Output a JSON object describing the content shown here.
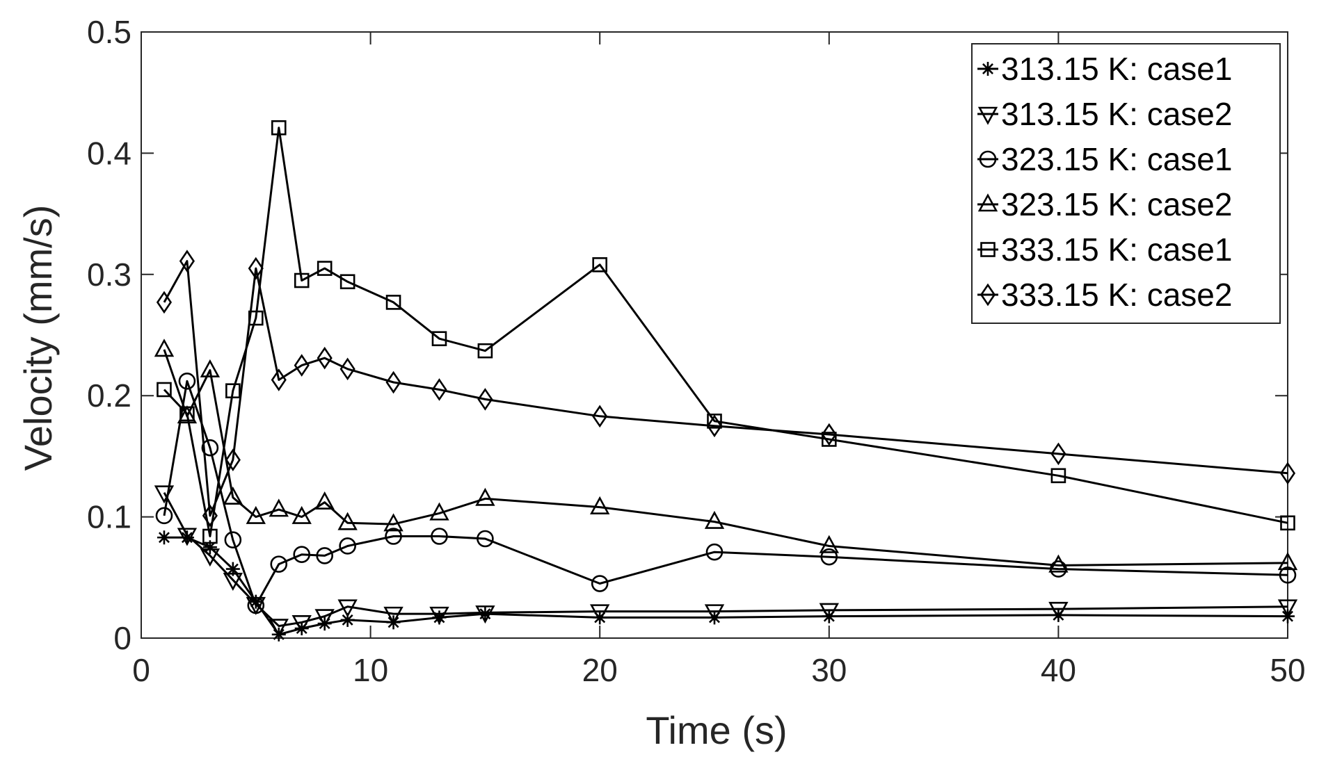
{
  "chart_data": {
    "type": "line",
    "title": "",
    "xlabel": "Time (s)",
    "ylabel": "Velocity (mm/s)",
    "xlim": [
      0,
      50
    ],
    "ylim": [
      0,
      0.5
    ],
    "xticks": [
      0,
      10,
      20,
      30,
      40,
      50
    ],
    "yticks": [
      0,
      0.1,
      0.2,
      0.3,
      0.4,
      0.5
    ],
    "xtick_labels": [
      "0",
      "10",
      "20",
      "30",
      "40",
      "50"
    ],
    "ytick_labels": [
      "0",
      "0.1",
      "0.2",
      "0.3",
      "0.4",
      "0.5"
    ],
    "grid": false,
    "legend_position": "top-right",
    "series": [
      {
        "name": "313.15 K: case1",
        "marker": "asterisk",
        "x": [
          1,
          2,
          3,
          4,
          5,
          6,
          7,
          8,
          9,
          11,
          13,
          15,
          20,
          25,
          30,
          40,
          50
        ],
        "y": [
          0.083,
          0.083,
          0.075,
          0.057,
          0.03,
          0.003,
          0.008,
          0.012,
          0.015,
          0.013,
          0.017,
          0.02,
          0.017,
          0.017,
          0.018,
          0.019,
          0.018
        ]
      },
      {
        "name": "313.15 K: case2",
        "marker": "triangle-down",
        "x": [
          1,
          2,
          3,
          4,
          5,
          6,
          7,
          8,
          9,
          11,
          13,
          15,
          20,
          25,
          30,
          40,
          50
        ],
        "y": [
          0.12,
          0.085,
          0.068,
          0.048,
          0.028,
          0.01,
          0.013,
          0.018,
          0.026,
          0.02,
          0.02,
          0.021,
          0.022,
          0.022,
          0.023,
          0.024,
          0.026
        ]
      },
      {
        "name": "323.15 K: case1",
        "marker": "circle",
        "x": [
          1,
          2,
          3,
          4,
          5,
          6,
          7,
          8,
          9,
          11,
          13,
          15,
          20,
          25,
          30,
          40,
          50
        ],
        "y": [
          0.101,
          0.212,
          0.157,
          0.081,
          0.027,
          0.061,
          0.069,
          0.068,
          0.076,
          0.084,
          0.084,
          0.082,
          0.045,
          0.071,
          0.067,
          0.057,
          0.052
        ]
      },
      {
        "name": "323.15 K: case2",
        "marker": "triangle-up",
        "x": [
          1,
          2,
          3,
          4,
          5,
          6,
          7,
          8,
          9,
          11,
          13,
          15,
          20,
          25,
          30,
          40,
          50
        ],
        "y": [
          0.238,
          0.183,
          0.221,
          0.116,
          0.1,
          0.106,
          0.1,
          0.112,
          0.095,
          0.094,
          0.103,
          0.115,
          0.108,
          0.096,
          0.076,
          0.06,
          0.062
        ]
      },
      {
        "name": "333.15 K: case1",
        "marker": "square",
        "x": [
          1,
          2,
          3,
          4,
          5,
          6,
          7,
          8,
          9,
          11,
          13,
          15,
          20,
          25,
          30,
          40,
          50
        ],
        "y": [
          0.205,
          0.185,
          0.084,
          0.204,
          0.264,
          0.421,
          0.295,
          0.305,
          0.294,
          0.277,
          0.247,
          0.237,
          0.308,
          0.179,
          0.164,
          0.134,
          0.095
        ]
      },
      {
        "name": "333.15 K: case2",
        "marker": "diamond",
        "x": [
          1,
          2,
          3,
          4,
          5,
          6,
          7,
          8,
          9,
          11,
          13,
          15,
          20,
          25,
          30,
          40,
          50
        ],
        "y": [
          0.277,
          0.311,
          0.101,
          0.147,
          0.305,
          0.213,
          0.225,
          0.231,
          0.222,
          0.211,
          0.205,
          0.197,
          0.183,
          0.175,
          0.168,
          0.152,
          0.136
        ]
      }
    ]
  }
}
